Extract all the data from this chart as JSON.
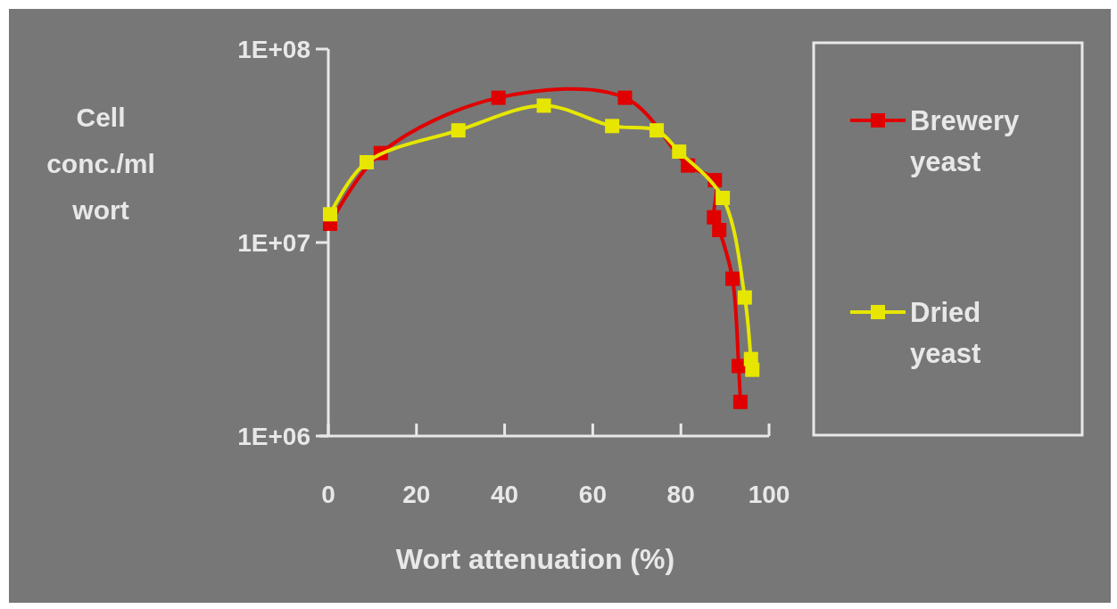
{
  "chart_data": {
    "type": "line",
    "xlabel": "Wort attenuation (%)",
    "ylabel": "Cell conc./ml wort",
    "log": "y",
    "xlim": [
      0,
      100
    ],
    "xticks": [
      0,
      20,
      40,
      60,
      80,
      100
    ],
    "ylim": [
      1000000,
      100000000
    ],
    "yticks": [
      {
        "value": 1000000,
        "label": "1E+06"
      },
      {
        "value": 10000000,
        "label": "1E+07"
      },
      {
        "value": 100000000,
        "label": "1E+08"
      }
    ],
    "grid": false,
    "legend": "right",
    "marker": "square",
    "line_style": "solid",
    "series": [
      {
        "name": "Brewery yeast",
        "color": "#e00000",
        "x": [
          0.4,
          11.9,
          38.6,
          67.3,
          81.6,
          87.7,
          87.5,
          88.7,
          91.7,
          93.1,
          93.5
        ],
        "values": [
          12500000,
          29000000,
          56000000,
          56000000,
          25000000,
          21000000,
          13500000,
          11600000,
          6500000,
          2300000,
          1500000
        ]
      },
      {
        "name": "Dried yeast",
        "color": "#e6e600",
        "x": [
          0.4,
          8.7,
          29.5,
          48.9,
          64.4,
          74.5,
          79.6,
          89.5,
          94.5,
          95.9,
          96.2
        ],
        "values": [
          14000000,
          26000000,
          38000000,
          51000000,
          40000000,
          38000000,
          29500000,
          17000000,
          5200000,
          2500000,
          2200000
        ]
      }
    ]
  }
}
